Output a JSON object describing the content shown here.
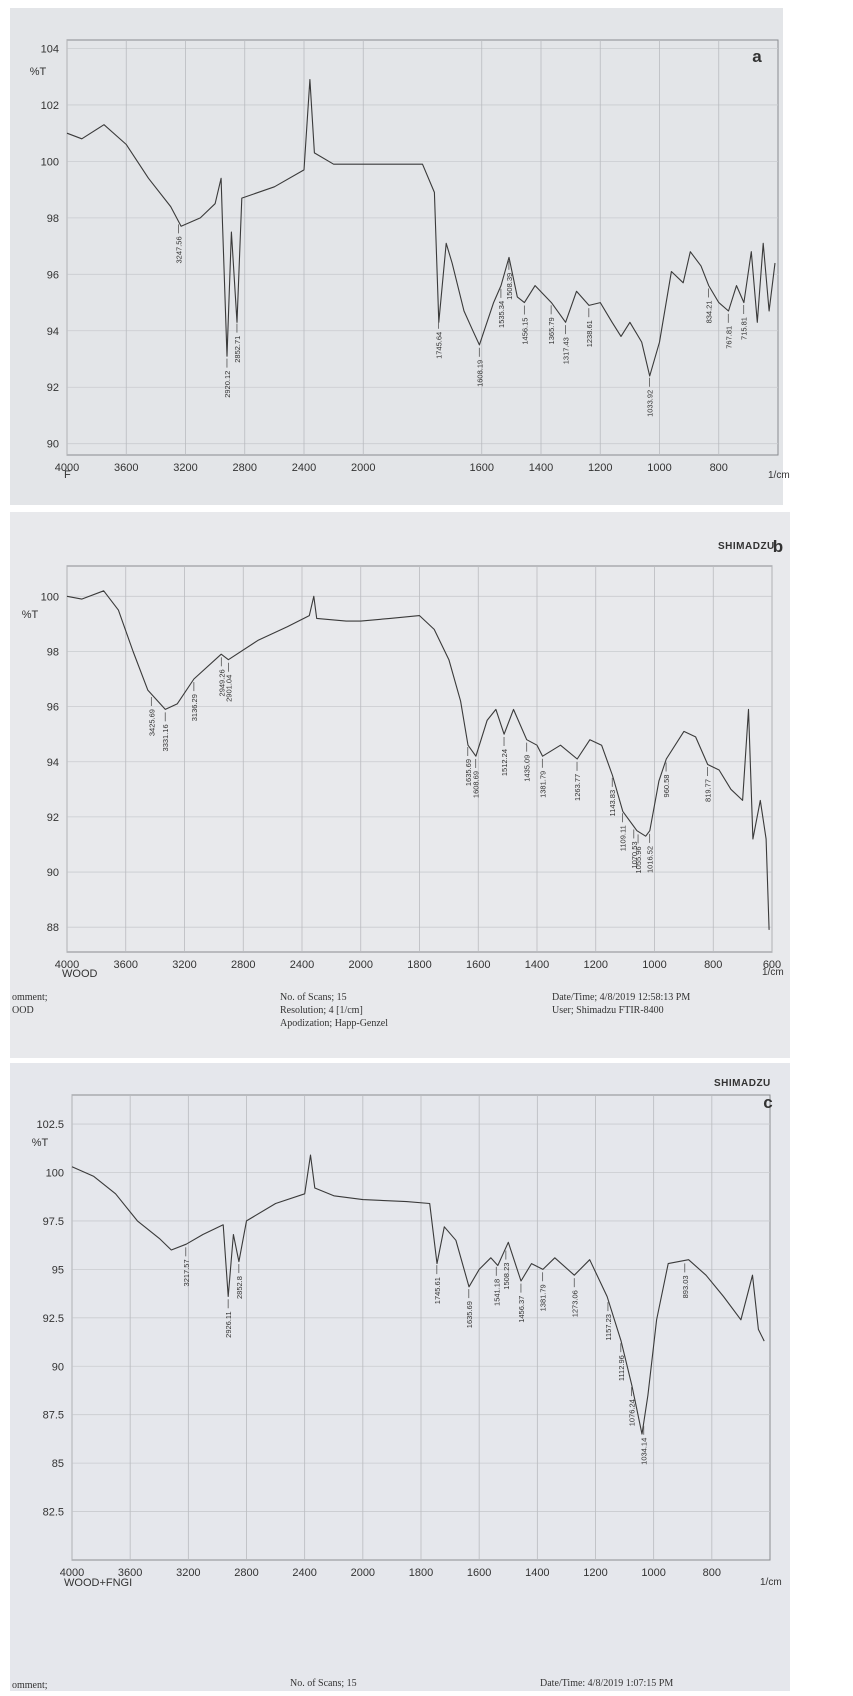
{
  "chart_data": [
    {
      "type": "line",
      "title": "a",
      "ylabel": "%T",
      "xlabel": "1/cm",
      "sample": "F",
      "color": "#3a3a3a",
      "grid": true,
      "x_break": 2000,
      "xlim": [
        4000,
        600
      ],
      "xticks": [
        4000,
        3600,
        3200,
        2800,
        2400,
        2000,
        1600,
        1400,
        1200,
        1000,
        800
      ],
      "ylim": [
        89.6,
        104.3
      ],
      "yticks": [
        90,
        92,
        94,
        96,
        98,
        100,
        102,
        104
      ],
      "x": [
        4000,
        3900,
        3750,
        3600,
        3450,
        3300,
        3230,
        3100,
        3000,
        2960,
        2950,
        2920,
        2890,
        2852,
        2820,
        2600,
        2400,
        2360,
        2330,
        2200,
        2000,
        1850,
        1800,
        1760,
        1745,
        1720,
        1700,
        1660,
        1630,
        1608,
        1560,
        1535,
        1508,
        1480,
        1456,
        1420,
        1365,
        1317,
        1280,
        1238,
        1200,
        1160,
        1130,
        1100,
        1060,
        1033,
        1000,
        960,
        920,
        896,
        860,
        834,
        800,
        767,
        740,
        715,
        690,
        670,
        650,
        630,
        610
      ],
      "values": [
        101.0,
        100.8,
        101.3,
        100.6,
        99.4,
        98.4,
        97.7,
        98.0,
        98.5,
        99.4,
        97.8,
        93.1,
        97.5,
        94.3,
        98.7,
        99.1,
        99.7,
        102.9,
        100.3,
        99.9,
        99.9,
        99.9,
        99.9,
        98.9,
        94.3,
        97.1,
        96.4,
        94.7,
        94.0,
        93.5,
        95.0,
        95.6,
        96.6,
        95.2,
        95.0,
        95.6,
        95.0,
        94.3,
        95.4,
        94.9,
        95.0,
        94.3,
        93.8,
        94.3,
        93.6,
        92.4,
        93.6,
        96.1,
        95.7,
        96.8,
        96.3,
        95.6,
        95.0,
        94.7,
        95.6,
        95.0,
        96.8,
        94.3,
        97.1,
        94.7,
        96.4
      ],
      "peaks": [
        3247.56,
        2920.12,
        2852.71,
        1745.64,
        1608.19,
        1535.34,
        1508.39,
        1456.15,
        1365.79,
        1317.43,
        1238.61,
        1033.92,
        834.21,
        767.81,
        715.81
      ]
    },
    {
      "type": "line",
      "title": "b",
      "brand": "SHIMADZU",
      "ylabel": "%T",
      "xlabel": "1/cm",
      "sample": "WOOD",
      "color": "#3a3a3a",
      "grid": true,
      "x_break": 2000,
      "xlim": [
        4000,
        600
      ],
      "xticks": [
        4000,
        3600,
        3200,
        2800,
        2400,
        2000,
        1800,
        1600,
        1400,
        1200,
        1000,
        800,
        600
      ],
      "ylim": [
        87.1,
        101.1
      ],
      "yticks": [
        88,
        90,
        92,
        94,
        96,
        98,
        100
      ],
      "x": [
        4000,
        3900,
        3750,
        3650,
        3550,
        3450,
        3331,
        3250,
        3136,
        2950,
        2901,
        2700,
        2500,
        2350,
        2320,
        2300,
        2100,
        2000,
        1900,
        1800,
        1750,
        1700,
        1660,
        1635,
        1608,
        1570,
        1540,
        1512,
        1480,
        1435,
        1400,
        1381,
        1320,
        1263,
        1220,
        1180,
        1143,
        1108,
        1060,
        1030,
        1016,
        985,
        960,
        900,
        860,
        819,
        780,
        740,
        700,
        680,
        665,
        640,
        620,
        610
      ],
      "values": [
        100.0,
        99.9,
        100.2,
        99.5,
        98.0,
        96.6,
        95.9,
        96.1,
        97.0,
        97.9,
        97.7,
        98.4,
        98.9,
        99.3,
        100.0,
        99.2,
        99.1,
        99.1,
        99.2,
        99.3,
        98.8,
        97.7,
        96.2,
        94.6,
        94.2,
        95.5,
        95.9,
        95.0,
        95.9,
        94.8,
        94.6,
        94.2,
        94.6,
        94.1,
        94.8,
        94.6,
        93.5,
        92.2,
        91.5,
        91.3,
        91.5,
        93.3,
        94.1,
        95.1,
        94.9,
        93.9,
        93.7,
        93.0,
        92.6,
        95.9,
        91.2,
        92.6,
        91.2,
        87.9
      ],
      "peaks": [
        3425.69,
        3331.16,
        3136.29,
        2949.26,
        2901.04,
        1635.69,
        1608.69,
        1512.24,
        1435.09,
        1381.79,
        1263.77,
        1143.83,
        1109.11,
        1070.53,
        1055.96,
        1016.52,
        960.58,
        819.77
      ],
      "footer": [
        "omment;",
        "OOD",
        "No. of Scans; 15",
        "Resolution;  4 [1/cm]",
        "Apodization;  Happ-Genzel",
        "Date/Time; 4/8/2019 12:58:13 PM",
        "User;     Shimadzu FTIR-8400"
      ]
    },
    {
      "type": "line",
      "title": "c",
      "brand": "SHIMADZU",
      "ylabel": "%T",
      "xlabel": "1/cm",
      "sample": "WOOD+FNGI",
      "color": "#3a3a3a",
      "grid": true,
      "x_break": 2000,
      "xlim": [
        4000,
        600
      ],
      "xticks": [
        4000,
        3600,
        3200,
        2800,
        2400,
        2000,
        1800,
        1600,
        1400,
        1200,
        1000,
        800
      ],
      "ylim": [
        80,
        104
      ],
      "yticks": [
        82.5,
        85,
        87.5,
        90,
        92.5,
        95,
        97.5,
        100,
        102.5
      ],
      "x": [
        4000,
        3850,
        3700,
        3550,
        3400,
        3317,
        3215,
        3100,
        2960,
        2926,
        2890,
        2852,
        2800,
        2600,
        2400,
        2360,
        2330,
        2200,
        2000,
        1850,
        1770,
        1745,
        1720,
        1680,
        1635,
        1600,
        1560,
        1536,
        1500,
        1456,
        1420,
        1381,
        1340,
        1273,
        1220,
        1160,
        1112,
        1075,
        1040,
        1020,
        990,
        950,
        880,
        820,
        760,
        700,
        660,
        640,
        620
      ],
      "values": [
        100.3,
        99.8,
        98.9,
        97.5,
        96.6,
        96.0,
        96.3,
        96.8,
        97.3,
        93.6,
        96.8,
        95.4,
        97.5,
        98.4,
        98.9,
        100.9,
        99.2,
        98.8,
        98.6,
        98.5,
        98.4,
        95.3,
        97.2,
        96.5,
        94.1,
        95.0,
        95.6,
        95.2,
        96.4,
        94.4,
        95.3,
        95.0,
        95.6,
        94.7,
        95.5,
        93.6,
        91.3,
        89.0,
        86.5,
        88.5,
        92.4,
        95.3,
        95.5,
        94.7,
        93.6,
        92.4,
        94.7,
        91.9,
        91.3
      ],
      "peaks": [
        3217.57,
        2926.11,
        2852.8,
        1745.61,
        1635.69,
        1541.18,
        1508.23,
        1456.37,
        1381.79,
        1273.06,
        1157.23,
        1112.96,
        1076.24,
        1034.14,
        893.03
      ],
      "footer": [
        "omment;",
        "No. of Scans; 15",
        "Date/Time: 4/8/2019 1:07:15 PM"
      ]
    }
  ]
}
